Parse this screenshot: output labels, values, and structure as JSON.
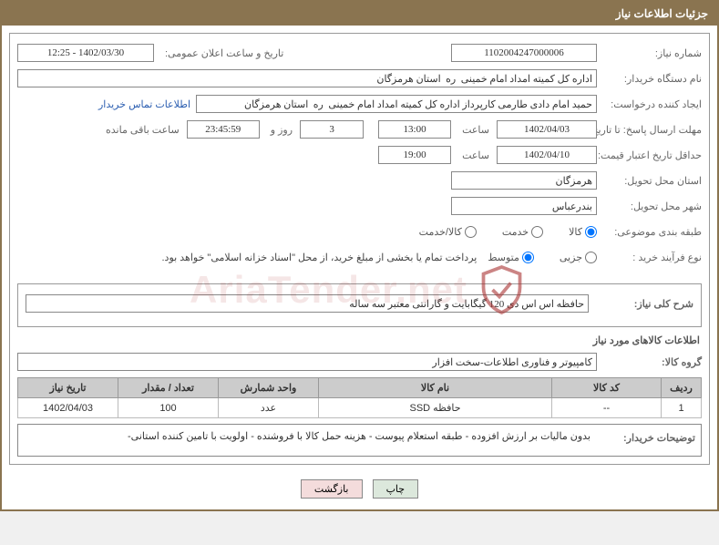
{
  "title": "جزئیات اطلاعات نیاز",
  "fields": {
    "need_number_label": "شماره نیاز:",
    "need_number": "1102004247000006",
    "announce_label": "تاریخ و ساعت اعلان عمومی:",
    "announce_value": "1402/03/30 - 12:25",
    "buyer_org_label": "نام دستگاه خریدار:",
    "buyer_org": "اداره کل کمیته امداد امام خمینی  ره  استان هرمزگان",
    "requester_label": "ایجاد کننده درخواست:",
    "requester": "حمید امام دادی طارمی کارپرداز اداره کل کمیته امداد امام خمینی  ره  استان هرمزگان",
    "contact_link": "اطلاعات تماس خریدار",
    "deadline_send_label": "مهلت ارسال پاسخ: تا تاریخ:",
    "deadline_send_date": "1402/04/03",
    "time_label": "ساعت",
    "deadline_send_time": "13:00",
    "days": "3",
    "days_and": "روز و",
    "remaining_time": "23:45:59",
    "remaining_label": "ساعت باقی مانده",
    "min_validity_label": "حداقل تاریخ اعتبار قیمت: تا تاریخ:",
    "min_validity_date": "1402/04/10",
    "min_validity_time": "19:00",
    "delivery_province_label": "استان محل تحویل:",
    "delivery_province": "هرمزگان",
    "delivery_city_label": "شهر محل تحویل:",
    "delivery_city": "بندرعباس",
    "classification_label": "طبقه بندی موضوعی:",
    "class_kala": "کالا",
    "class_khadamat": "خدمت",
    "class_both": "کالا/خدمت",
    "process_type_label": "نوع فرآیند خرید :",
    "proc_small": "جزیی",
    "proc_medium": "متوسط",
    "payment_note": "پرداخت تمام یا بخشی از مبلغ خرید، از محل \"اسناد خزانه اسلامی\" خواهد بود."
  },
  "desc": {
    "overall_label": "شرح کلی نیاز:",
    "overall_text": "حافظه اس اس دی 120 گیگابایت و گارانتی معتبر سه ساله",
    "goods_info_title": "اطلاعات کالاهای مورد نیاز",
    "group_label": "گروه کالا:",
    "group_value": "کامپیوتر و فناوری اطلاعات-سخت افزار"
  },
  "table": {
    "headers": {
      "row": "ردیف",
      "code": "کد کالا",
      "name": "نام کالا",
      "unit": "واحد شمارش",
      "qty": "تعداد / مقدار",
      "date": "تاریخ نیاز"
    },
    "rows": [
      {
        "row": "1",
        "code": "--",
        "name": "حافظه SSD",
        "unit": "عدد",
        "qty": "100",
        "date": "1402/04/03"
      }
    ]
  },
  "buyer_notes": {
    "label": "توضیحات خریدار:",
    "text": "بدون مالیات بر ارزش افزوده - طبقه استعلام پیوست - هزینه حمل کالا با فروشنده -  اولویت با تامین کننده استانی-"
  },
  "buttons": {
    "print": "چاپ",
    "back": "بازگشت"
  },
  "watermark": "AriaTender.net"
}
